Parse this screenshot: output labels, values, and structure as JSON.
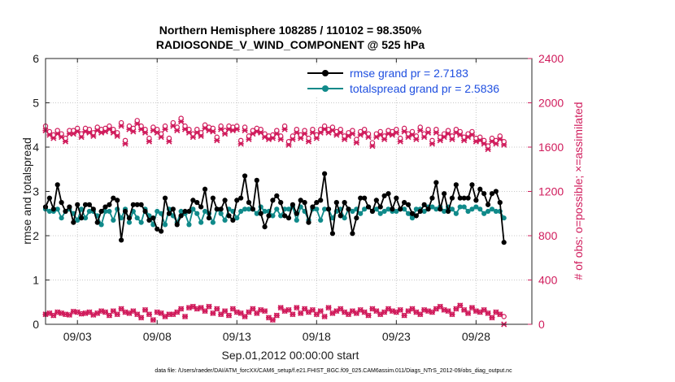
{
  "chart_data": {
    "type": "line",
    "title_line1": "Northern Hemisphere 108285 / 110102 = 98.350%",
    "title_line2": "RADIOSONDE_V_WIND_COMPONENT @ 525 hPa",
    "xlabel": "Sep.01,2012 00:00:00 start",
    "ylabel": "rmse and totalspread",
    "ylabel_right": "# of obs: o=possible; ×=assimilated",
    "footer": "data file: /Users/raeder/DAI/ATM_forcXX/CAM6_setup/f.e21.FHIST_BGC.f09_025.CAM6assim.011/Diags_NTrS_2012-09/obs_diag_output.nc",
    "xlim": [
      1,
      31.5
    ],
    "ylim": [
      0,
      6
    ],
    "ylim_right": [
      0,
      2400
    ],
    "x_ticks": [
      3,
      8,
      13,
      18,
      23,
      28
    ],
    "x_tick_labels": [
      "09/03",
      "09/08",
      "09/13",
      "09/18",
      "09/23",
      "09/28"
    ],
    "y_ticks": [
      0,
      1,
      2,
      3,
      4,
      5,
      6
    ],
    "y_tick_labels": [
      "0",
      "1",
      "2",
      "3",
      "4",
      "5",
      "6"
    ],
    "y_right_ticks": [
      0,
      400,
      800,
      1200,
      1600,
      2000,
      2400
    ],
    "y_right_tick_labels": [
      "0",
      "400",
      "800",
      "1200",
      "1600",
      "2000",
      "2400"
    ],
    "x_start": 1.0,
    "x_step": 0.25,
    "series": [
      {
        "name": "rmse",
        "legend": "rmse grand pr = 2.7183",
        "color": "#000000",
        "axis": "left",
        "values": [
          2.65,
          2.85,
          2.6,
          3.15,
          2.75,
          2.55,
          2.65,
          2.3,
          2.7,
          2.4,
          2.7,
          2.7,
          2.6,
          2.3,
          2.55,
          2.65,
          2.7,
          2.85,
          2.8,
          1.9,
          2.55,
          2.4,
          2.7,
          2.7,
          2.7,
          2.55,
          2.35,
          2.4,
          2.15,
          2.1,
          2.85,
          2.5,
          2.6,
          2.25,
          2.45,
          2.55,
          2.55,
          2.8,
          2.75,
          2.65,
          3.05,
          2.4,
          2.85,
          2.6,
          2.6,
          2.8,
          2.45,
          2.35,
          2.8,
          2.85,
          3.35,
          2.75,
          2.6,
          3.25,
          2.5,
          2.2,
          2.45,
          2.8,
          2.9,
          2.75,
          2.45,
          2.4,
          2.7,
          2.5,
          2.8,
          2.75,
          2.3,
          2.65,
          2.75,
          2.8,
          3.4,
          2.6,
          2.05,
          2.75,
          2.45,
          2.75,
          2.6,
          2.05,
          2.4,
          2.85,
          2.85,
          2.65,
          2.55,
          2.8,
          2.65,
          2.9,
          2.95,
          2.6,
          2.85,
          2.6,
          2.75,
          2.7,
          2.5,
          2.45,
          2.55,
          2.7,
          2.6,
          2.85,
          3.2,
          2.6,
          2.95,
          2.55,
          2.85,
          3.15,
          2.85,
          2.85,
          2.85,
          3.15,
          2.8,
          3.05,
          2.95,
          2.7,
          2.95,
          3.0,
          2.75,
          1.85
        ]
      },
      {
        "name": "totalspread",
        "legend": "totalspread grand pr = 2.5836",
        "color": "#108a8a",
        "axis": "left",
        "values": [
          2.6,
          2.55,
          2.55,
          2.6,
          2.4,
          2.55,
          2.6,
          2.5,
          2.35,
          2.6,
          2.4,
          2.55,
          2.55,
          2.45,
          2.25,
          2.55,
          2.55,
          2.35,
          2.6,
          2.4,
          2.6,
          2.3,
          2.55,
          2.4,
          2.3,
          2.6,
          2.45,
          2.25,
          2.55,
          2.5,
          2.25,
          2.6,
          2.45,
          2.3,
          2.55,
          2.5,
          2.25,
          2.6,
          2.5,
          2.3,
          2.55,
          2.5,
          2.3,
          2.6,
          2.5,
          2.35,
          2.6,
          2.55,
          2.4,
          2.55,
          2.6,
          2.6,
          2.6,
          2.5,
          2.65,
          2.55,
          2.55,
          2.45,
          2.6,
          2.45,
          2.6,
          2.6,
          2.65,
          2.35,
          2.65,
          2.55,
          2.35,
          2.6,
          2.6,
          2.35,
          2.6,
          2.6,
          2.4,
          2.55,
          2.6,
          2.4,
          2.6,
          2.55,
          2.6,
          2.5,
          2.6,
          2.65,
          2.55,
          2.6,
          2.5,
          2.55,
          2.6,
          2.55,
          2.55,
          2.6,
          2.6,
          2.5,
          2.4,
          2.6,
          2.6,
          2.55,
          2.65,
          2.65,
          2.6,
          2.65,
          2.55,
          2.65,
          2.6,
          2.5,
          2.65,
          2.65,
          2.55,
          2.6,
          2.65,
          2.6,
          2.5,
          2.55,
          2.6,
          2.55,
          2.55,
          2.4
        ]
      }
    ],
    "obs_possible": {
      "color": "#d01c5c",
      "axis": "right",
      "marker": "o",
      "values": [
        1790,
        1740,
        1710,
        1750,
        1720,
        1680,
        1750,
        1750,
        1770,
        1720,
        1770,
        1760,
        1730,
        1780,
        1760,
        1770,
        1790,
        1760,
        1730,
        1820,
        1660,
        1790,
        1770,
        1840,
        1790,
        1760,
        1680,
        1780,
        1760,
        1720,
        1790,
        1680,
        1820,
        1780,
        1860,
        1790,
        1760,
        1720,
        1760,
        1730,
        1800,
        1780,
        1770,
        1690,
        1790,
        1750,
        1790,
        1780,
        1790,
        1660,
        1780,
        1700,
        1750,
        1770,
        1760,
        1720,
        1700,
        1710,
        1750,
        1700,
        1790,
        1650,
        1700,
        1760,
        1710,
        1750,
        1680,
        1760,
        1710,
        1760,
        1790,
        1760,
        1780,
        1740,
        1760,
        1700,
        1730,
        1750,
        1670,
        1740,
        1760,
        1720,
        1640,
        1720,
        1740,
        1700,
        1750,
        1740,
        1760,
        1680,
        1770,
        1720,
        1740,
        1700,
        1780,
        1720,
        1760,
        1660,
        1760,
        1690,
        1720,
        1750,
        1700,
        1760,
        1740,
        1690,
        1720,
        1740,
        1680,
        1690,
        1660,
        1610,
        1680,
        1660,
        1700,
        1650
      ]
    },
    "obs_assimilated": {
      "color": "#d01c5c",
      "axis": "right",
      "marker": "x",
      "values": [
        1750,
        1710,
        1680,
        1720,
        1690,
        1650,
        1720,
        1720,
        1740,
        1690,
        1740,
        1730,
        1700,
        1750,
        1730,
        1740,
        1760,
        1730,
        1700,
        1790,
        1630,
        1760,
        1740,
        1810,
        1760,
        1730,
        1650,
        1750,
        1730,
        1690,
        1760,
        1650,
        1790,
        1750,
        1830,
        1760,
        1730,
        1690,
        1730,
        1700,
        1770,
        1750,
        1740,
        1660,
        1760,
        1720,
        1760,
        1750,
        1760,
        1630,
        1750,
        1670,
        1720,
        1740,
        1730,
        1690,
        1670,
        1680,
        1720,
        1670,
        1760,
        1620,
        1670,
        1730,
        1680,
        1720,
        1650,
        1730,
        1680,
        1730,
        1760,
        1730,
        1750,
        1710,
        1730,
        1670,
        1700,
        1720,
        1640,
        1710,
        1730,
        1690,
        1610,
        1690,
        1710,
        1670,
        1720,
        1710,
        1730,
        1650,
        1740,
        1690,
        1710,
        1670,
        1750,
        1690,
        1730,
        1630,
        1730,
        1660,
        1690,
        1720,
        1670,
        1730,
        1710,
        1660,
        1690,
        1710,
        1650,
        1660,
        1630,
        1580,
        1650,
        1630,
        1670,
        1620
      ]
    },
    "obs_possible_low": {
      "color": "#d01c5c",
      "axis": "right",
      "marker": "o",
      "values": [
        90,
        100,
        80,
        110,
        100,
        90,
        85,
        115,
        110,
        95,
        100,
        110,
        85,
        100,
        120,
        110,
        80,
        120,
        90,
        140,
        110,
        100,
        120,
        90,
        60,
        130,
        90,
        40,
        110,
        100,
        70,
        90,
        90,
        110,
        140,
        70,
        150,
        160,
        140,
        150,
        120,
        160,
        100,
        140,
        90,
        120,
        80,
        140,
        110,
        100,
        70,
        110,
        140,
        100,
        130,
        120,
        60,
        40,
        80,
        150,
        120,
        130,
        90,
        150,
        100,
        140,
        110,
        130,
        90,
        120,
        70,
        150,
        100,
        120,
        140,
        110,
        90,
        120,
        100,
        130,
        110,
        80,
        140,
        120,
        90,
        110,
        140,
        120,
        110,
        130,
        80,
        120,
        140,
        110,
        90,
        130,
        120,
        110,
        140,
        160,
        130,
        120,
        90,
        140,
        170,
        130,
        100,
        150,
        120,
        110,
        130,
        100,
        60,
        110,
        90,
        70
      ]
    },
    "obs_assimilated_low": {
      "color": "#d01c5c",
      "axis": "right",
      "marker": "x",
      "values": [
        90,
        100,
        80,
        110,
        100,
        90,
        85,
        115,
        110,
        95,
        100,
        110,
        85,
        100,
        120,
        110,
        80,
        120,
        90,
        140,
        110,
        100,
        120,
        90,
        60,
        130,
        90,
        40,
        110,
        100,
        70,
        90,
        90,
        110,
        140,
        70,
        150,
        160,
        140,
        150,
        120,
        160,
        100,
        140,
        90,
        120,
        80,
        140,
        110,
        100,
        70,
        110,
        140,
        100,
        130,
        120,
        60,
        40,
        80,
        150,
        120,
        130,
        90,
        150,
        100,
        140,
        110,
        130,
        90,
        120,
        70,
        150,
        100,
        120,
        140,
        110,
        90,
        120,
        100,
        130,
        110,
        80,
        140,
        120,
        90,
        110,
        140,
        120,
        110,
        130,
        80,
        120,
        140,
        110,
        90,
        130,
        120,
        110,
        140,
        160,
        130,
        120,
        90,
        140,
        170,
        130,
        100,
        150,
        120,
        110,
        130,
        100,
        60,
        110,
        90,
        0
      ]
    }
  }
}
